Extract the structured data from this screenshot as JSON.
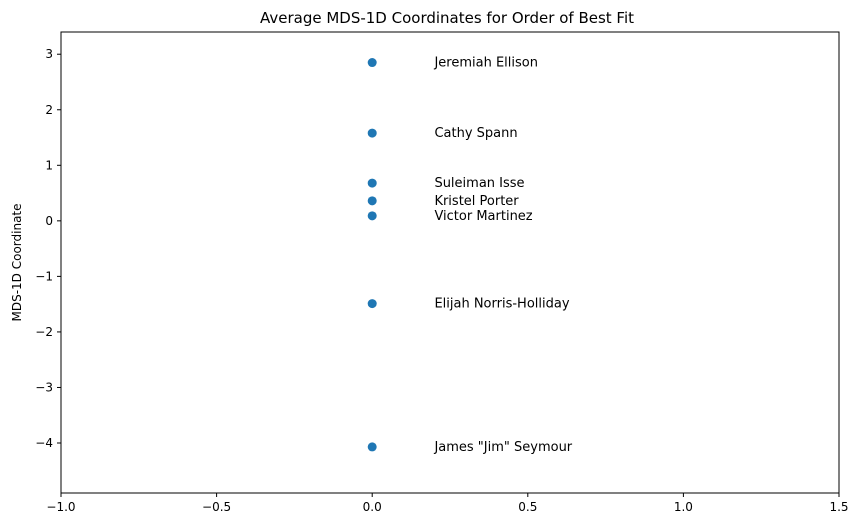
{
  "chart_data": {
    "type": "scatter",
    "title": "Average MDS-1D Coordinates for Order of Best Fit",
    "xlabel": "",
    "ylabel": "MDS-1D Coordinate",
    "xlim": [
      -1.0,
      1.5
    ],
    "ylim": [
      -4.9,
      3.4
    ],
    "xticks": [
      "−1.0",
      "−0.5",
      "0.0",
      "0.5",
      "1.0",
      "1.5"
    ],
    "xtick_values": [
      -1.0,
      -0.5,
      0.0,
      0.5,
      1.0,
      1.5
    ],
    "yticks": [
      "3",
      "2",
      "1",
      "0",
      "−1",
      "−2",
      "−3",
      "−4"
    ],
    "ytick_values": [
      3,
      2,
      1,
      0,
      -1,
      -2,
      -3,
      -4
    ],
    "grid": false,
    "marker_color": "#1f77b4",
    "label_x_offset": 0.2,
    "points": [
      {
        "label": "Jeremiah Ellison",
        "x": 0.0,
        "y": 2.85
      },
      {
        "label": "Cathy Spann",
        "x": 0.0,
        "y": 1.58
      },
      {
        "label": "Suleiman Isse",
        "x": 0.0,
        "y": 0.68
      },
      {
        "label": "Kristel Porter",
        "x": 0.0,
        "y": 0.36
      },
      {
        "label": "Victor Martinez",
        "x": 0.0,
        "y": 0.09
      },
      {
        "label": "Elijah Norris-Holliday",
        "x": 0.0,
        "y": -1.49
      },
      {
        "label": "James \"Jim\" Seymour",
        "x": 0.0,
        "y": -4.07
      }
    ]
  }
}
